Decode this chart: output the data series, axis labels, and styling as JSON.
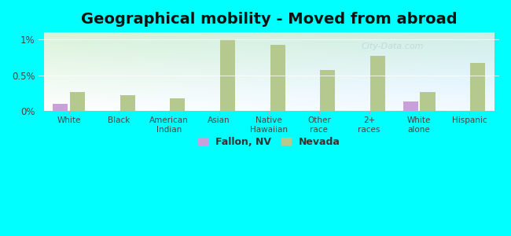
{
  "title": "Geographical mobility - Moved from abroad",
  "categories": [
    "White",
    "Black",
    "American\nIndian",
    "Asian",
    "Native\nHawaiian",
    "Other\nrace",
    "2+\nraces",
    "White\nalone",
    "Hispanic"
  ],
  "fallon_values": [
    0.1,
    0.0,
    0.0,
    0.0,
    0.0,
    0.0,
    0.0,
    0.13,
    0.0
  ],
  "nevada_values": [
    0.27,
    0.22,
    0.18,
    1.0,
    0.93,
    0.57,
    0.77,
    0.27,
    0.67
  ],
  "fallon_color": "#c9a0dc",
  "nevada_color": "#b5c98e",
  "background_color": "#00ffff",
  "bar_width": 0.3,
  "ylim": [
    0,
    1.1
  ],
  "yticks": [
    0,
    0.5,
    1.0
  ],
  "ytick_labels": [
    "0%",
    "0.5%",
    "1%"
  ],
  "title_fontsize": 14,
  "legend_fallon": "Fallon, NV",
  "legend_nevada": "Nevada",
  "gradient_colors": [
    "#d4edd4",
    "#e8f5e8",
    "#f0faf0",
    "#e0f8f8",
    "#c8f5f5"
  ],
  "watermark_color": "#c0d8d8"
}
